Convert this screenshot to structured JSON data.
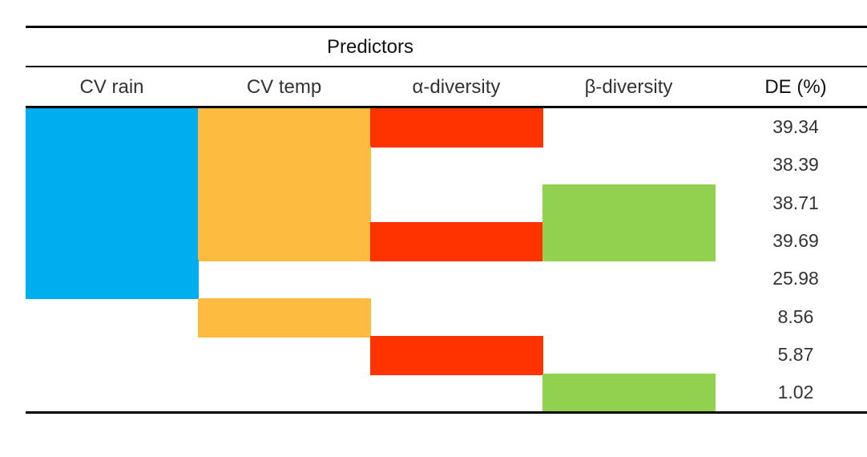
{
  "table": {
    "group_header": "Predictors",
    "columns": [
      "CV rain",
      "CV temp",
      "α-diversity",
      "β-diversity"
    ],
    "value_header": "DE (%)"
  },
  "colors": {
    "CV rain": "#00AEEF",
    "CV temp": "#FDBB40",
    "α-diversity": "#FF3300",
    "β-diversity": "#92D050"
  },
  "chart_data": {
    "type": "table",
    "columns": [
      "CV rain",
      "CV temp",
      "α-diversity",
      "β-diversity"
    ],
    "rows": [
      {
        "predictors": [
          true,
          true,
          true,
          false
        ],
        "de": "39.34"
      },
      {
        "predictors": [
          true,
          true,
          false,
          false
        ],
        "de": "38.39"
      },
      {
        "predictors": [
          true,
          true,
          false,
          true
        ],
        "de": "38.71"
      },
      {
        "predictors": [
          true,
          true,
          true,
          true
        ],
        "de": "39.69"
      },
      {
        "predictors": [
          true,
          false,
          false,
          false
        ],
        "de": "25.98"
      },
      {
        "predictors": [
          false,
          true,
          false,
          false
        ],
        "de": "8.56"
      },
      {
        "predictors": [
          false,
          false,
          true,
          false
        ],
        "de": "5.87"
      },
      {
        "predictors": [
          false,
          false,
          false,
          true
        ],
        "de": "1.02"
      }
    ]
  }
}
